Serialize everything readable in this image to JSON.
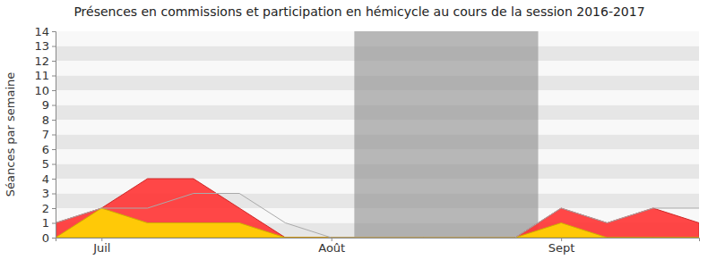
{
  "chart_data": {
    "type": "area",
    "title": "Présences en commissions et participation en hémicycle au cours de la session 2016-2017",
    "y_label": "Séances par semaine",
    "categories": [
      null,
      "Juil",
      null,
      null,
      null,
      null,
      "Août",
      null,
      null,
      null,
      null,
      "Sept",
      null,
      null,
      null
    ],
    "series": [
      {
        "type": "area",
        "color": "#ff3333",
        "values": [
          1,
          2,
          4,
          4,
          2,
          0,
          0,
          0,
          0,
          0,
          0,
          2,
          1,
          2,
          1
        ]
      },
      {
        "type": "area",
        "color": "#ffd700",
        "values": [
          0,
          2,
          1,
          1,
          1,
          0,
          0,
          0,
          0,
          0,
          0,
          1,
          0,
          0,
          0
        ]
      },
      {
        "type": "line",
        "color": "#aaaaaa",
        "values": [
          1,
          2,
          2,
          3,
          3,
          1,
          0,
          0,
          0,
          0,
          0,
          2,
          1,
          2,
          2
        ]
      }
    ],
    "shaded_x_range": [
      6.5,
      10.5
    ],
    "ylim": [
      0,
      14
    ],
    "yticks": [
      0,
      1,
      2,
      3,
      4,
      5,
      6,
      7,
      8,
      9,
      10,
      11,
      12,
      13,
      14
    ],
    "grid": true
  }
}
